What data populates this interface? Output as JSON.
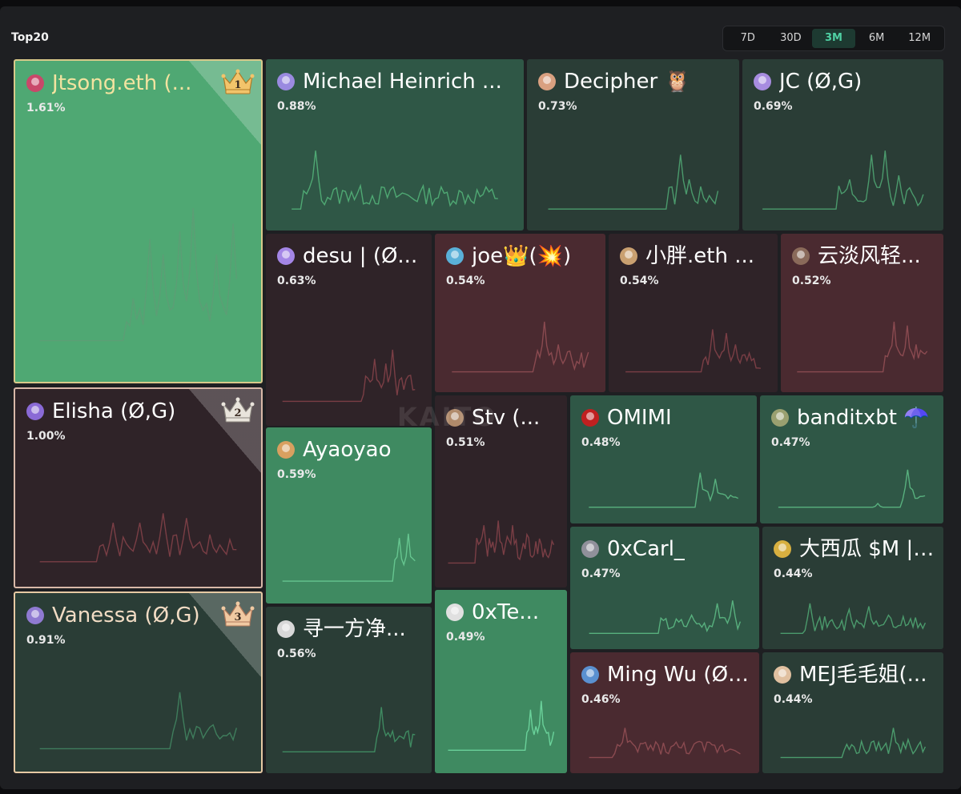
{
  "header": {
    "title": "Top20",
    "ranges": [
      "7D",
      "30D",
      "3M",
      "6M",
      "12M"
    ],
    "active_range": "3M"
  },
  "watermark": "KAITO",
  "colors": {
    "green_bright": "#4fa873",
    "green_mid": "#3f8a61",
    "green_dark": "#2f5746",
    "green_deep": "#2a3d36",
    "red_dark": "#4a2a30",
    "red_deep": "#2f2328"
  },
  "tiles": [
    {
      "name": "Jtsong.eth (...",
      "pct": "1.61%",
      "rank": "1",
      "icon": "crown-gold-icon"
    },
    {
      "name": "Elisha (Ø,G)",
      "pct": "1.00%",
      "rank": "2",
      "icon": "crown-silver-icon"
    },
    {
      "name": "Vanessa (Ø,G)",
      "pct": "0.91%",
      "rank": "3",
      "icon": "crown-bronze-icon"
    },
    {
      "name": "Michael Heinrich ...",
      "pct": "0.88%"
    },
    {
      "name": "Decipher 🦉",
      "pct": "0.73%"
    },
    {
      "name": "JC (Ø,G)",
      "pct": "0.69%"
    },
    {
      "name": "desu | (Ø...",
      "pct": "0.63%"
    },
    {
      "name": "joe👑(💥)",
      "pct": "0.54%"
    },
    {
      "name": "小胖.eth ...",
      "pct": "0.54%"
    },
    {
      "name": "云淡风轻...",
      "pct": "0.52%"
    },
    {
      "name": "Ayaoyao",
      "pct": "0.59%"
    },
    {
      "name": "Stv (...",
      "pct": "0.51%"
    },
    {
      "name": "OMIMI",
      "pct": "0.48%"
    },
    {
      "name": "banditxbt ☂️",
      "pct": "0.47%"
    },
    {
      "name": "寻一方净...",
      "pct": "0.56%"
    },
    {
      "name": "0xTe...",
      "pct": "0.49%"
    },
    {
      "name": "0xCarl_",
      "pct": "0.47%"
    },
    {
      "name": "大西瓜 $M | 🐜",
      "pct": "0.44%"
    },
    {
      "name": "Ming Wu (Ø,G)",
      "pct": "0.46%"
    },
    {
      "name": "MEJ毛毛姐(...",
      "pct": "0.44%"
    }
  ]
}
